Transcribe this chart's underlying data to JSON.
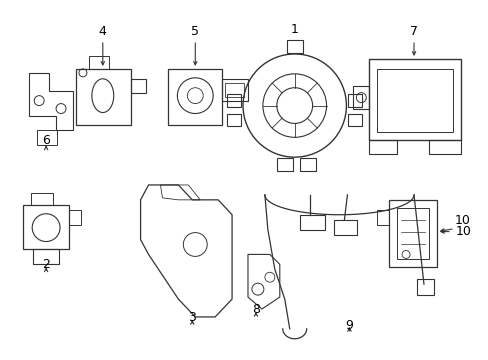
{
  "bg_color": "#ffffff",
  "line_color": "#333333",
  "label_color": "#000000",
  "figsize": [
    4.89,
    3.6
  ],
  "dpi": 100,
  "xlim": [
    0,
    489
  ],
  "ylim": [
    0,
    360
  ]
}
